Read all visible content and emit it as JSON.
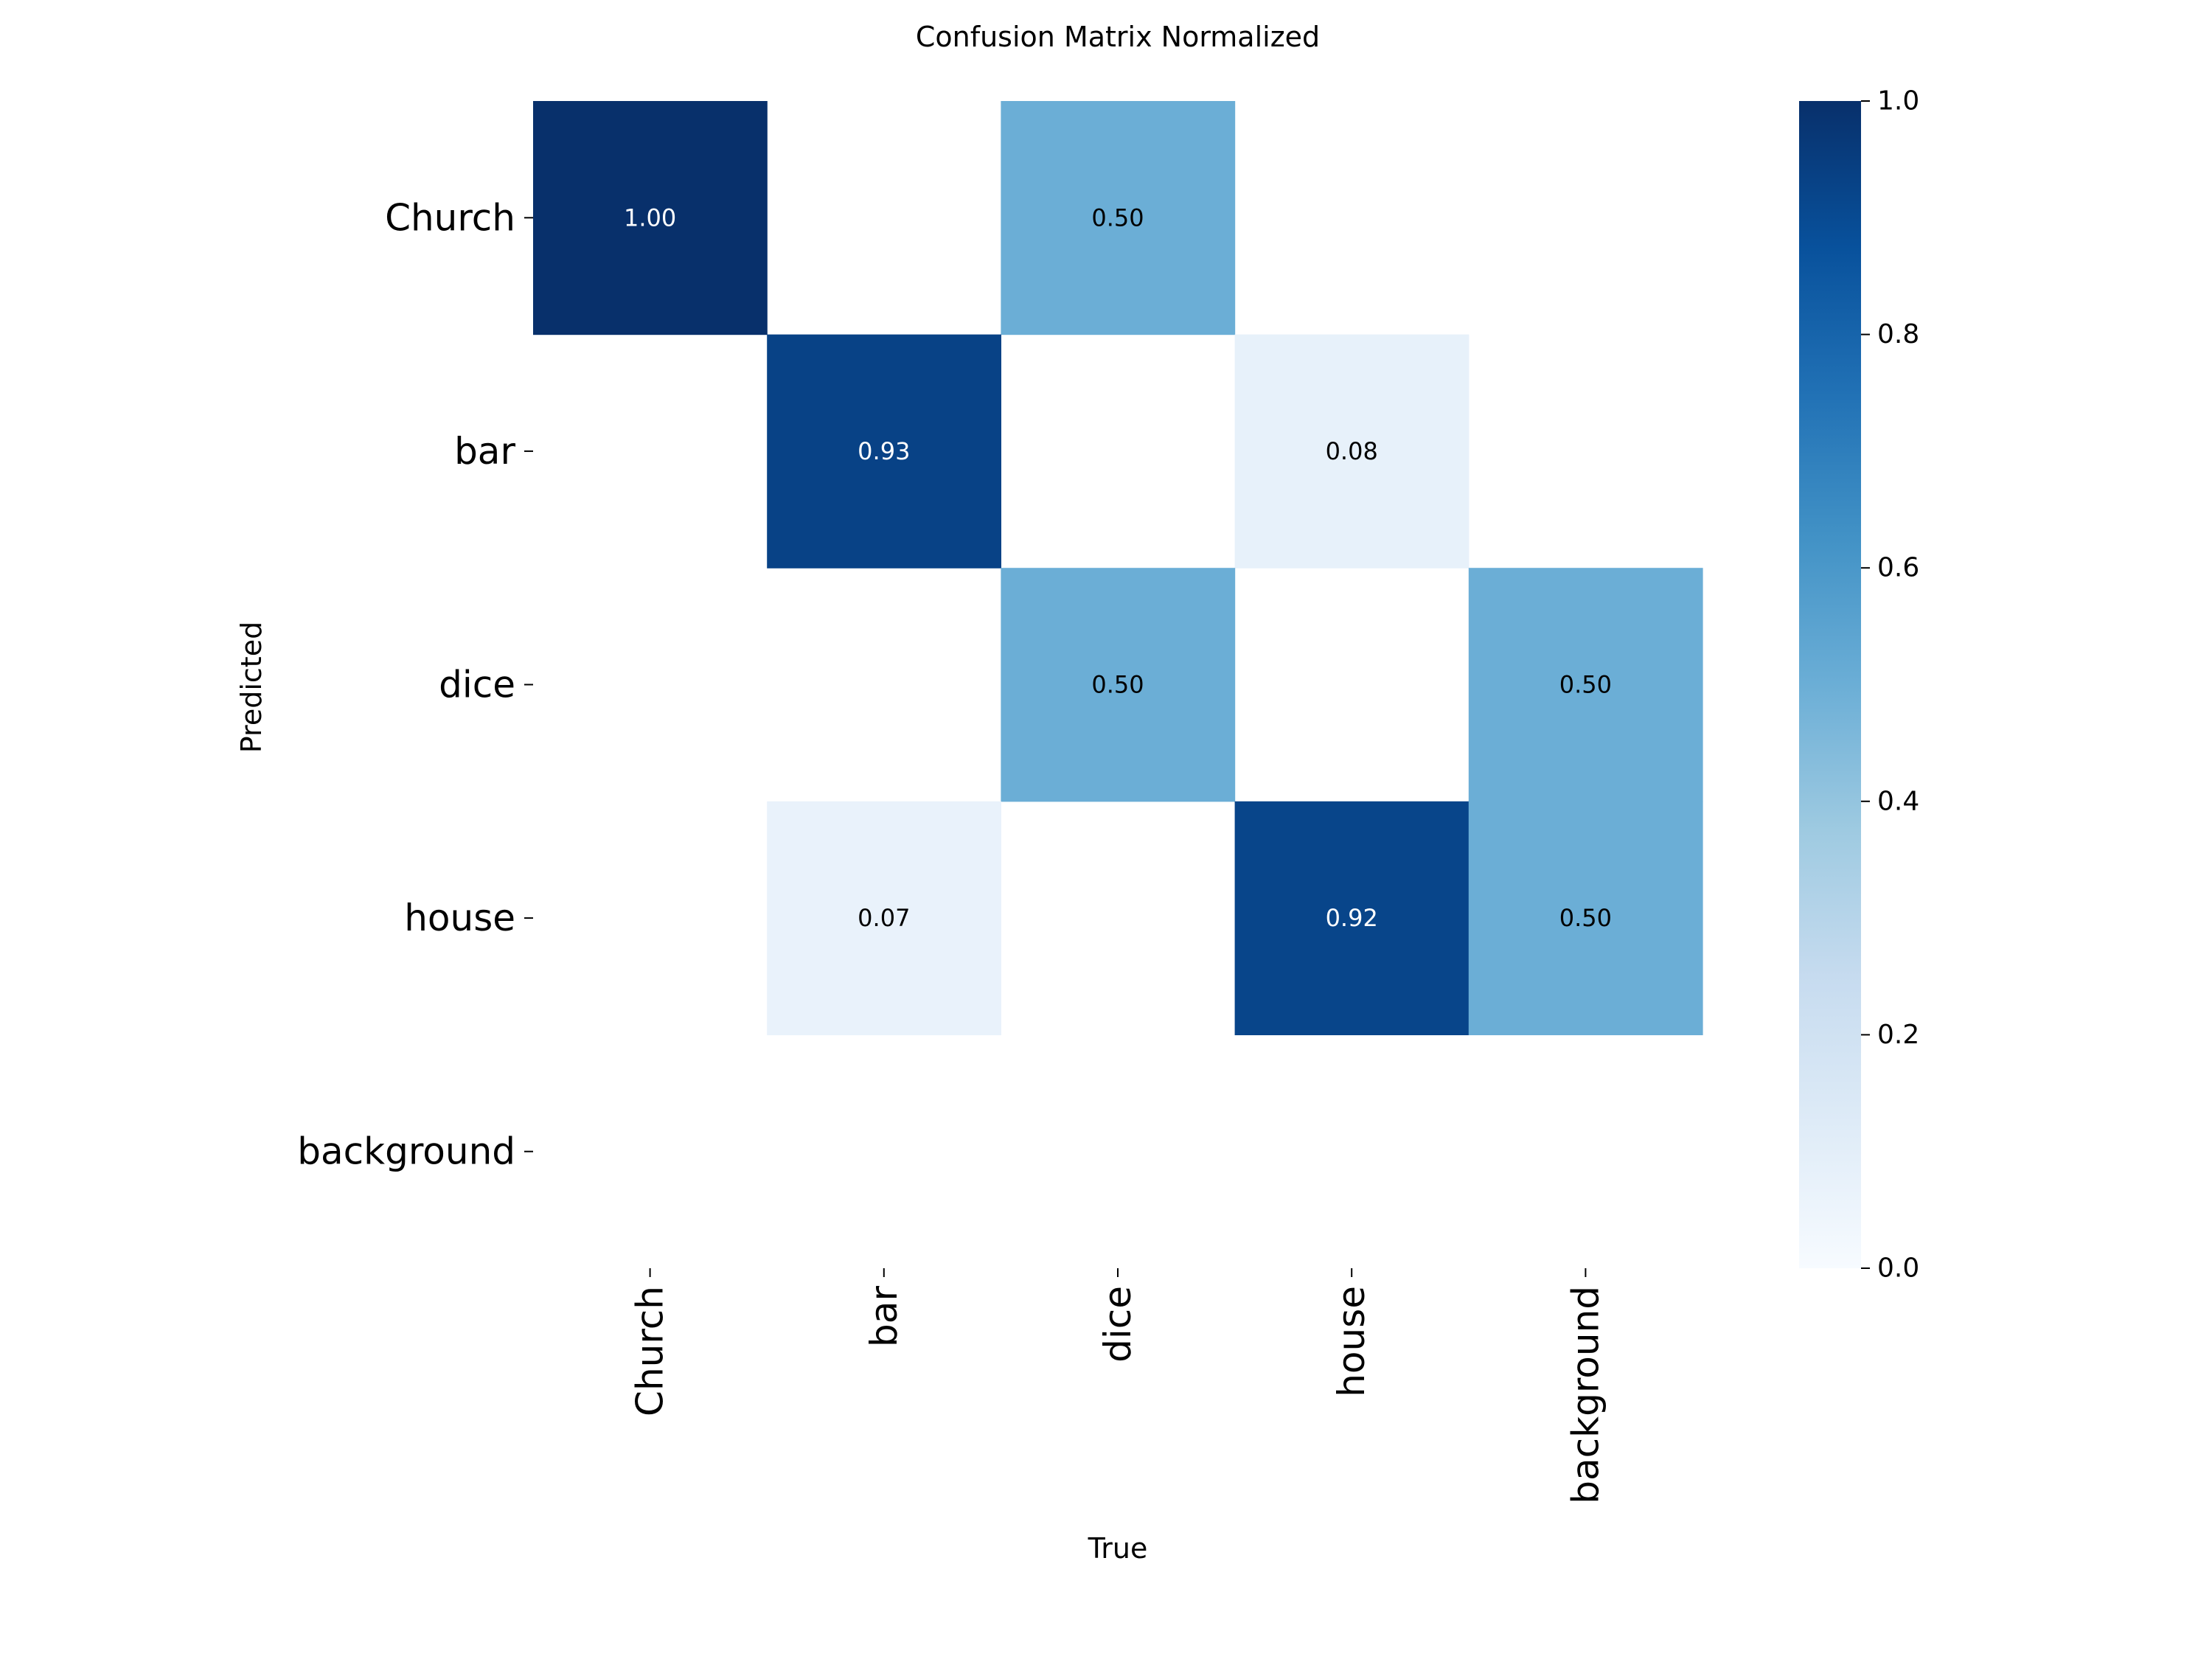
{
  "chart_data": {
    "type": "heatmap",
    "title": "Confusion Matrix Normalized",
    "xlabel": "True",
    "ylabel": "Predicted",
    "x_categories": [
      "Church",
      "bar",
      "dice",
      "house",
      "background"
    ],
    "y_categories": [
      "Church",
      "bar",
      "dice",
      "house",
      "background"
    ],
    "values": [
      [
        1.0,
        null,
        0.5,
        null,
        null
      ],
      [
        null,
        0.93,
        null,
        0.08,
        null
      ],
      [
        null,
        null,
        0.5,
        null,
        0.5
      ],
      [
        null,
        0.07,
        null,
        0.92,
        0.5
      ],
      [
        null,
        null,
        null,
        null,
        null
      ]
    ],
    "cell_labels": [
      [
        "1.00",
        "",
        "0.50",
        "",
        ""
      ],
      [
        "",
        "0.93",
        "",
        "0.08",
        ""
      ],
      [
        "",
        "",
        "0.50",
        "",
        "0.50"
      ],
      [
        "",
        "0.07",
        "",
        "0.92",
        "0.50"
      ],
      [
        "",
        "",
        "",
        "",
        ""
      ]
    ],
    "colormap": "Blues",
    "colorbar": {
      "range": [
        0.0,
        1.0
      ],
      "ticks": [
        0.0,
        0.2,
        0.4,
        0.6,
        0.8,
        1.0
      ],
      "tick_labels": [
        "0.0",
        "0.2",
        "0.4",
        "0.6",
        "0.8",
        "1.0"
      ]
    },
    "colors": [
      "#f7fbff",
      "#deebf7",
      "#c6dbef",
      "#9ecae1",
      "#6baed6",
      "#4292c6",
      "#2171b5",
      "#08519c",
      "#08306b"
    ]
  }
}
